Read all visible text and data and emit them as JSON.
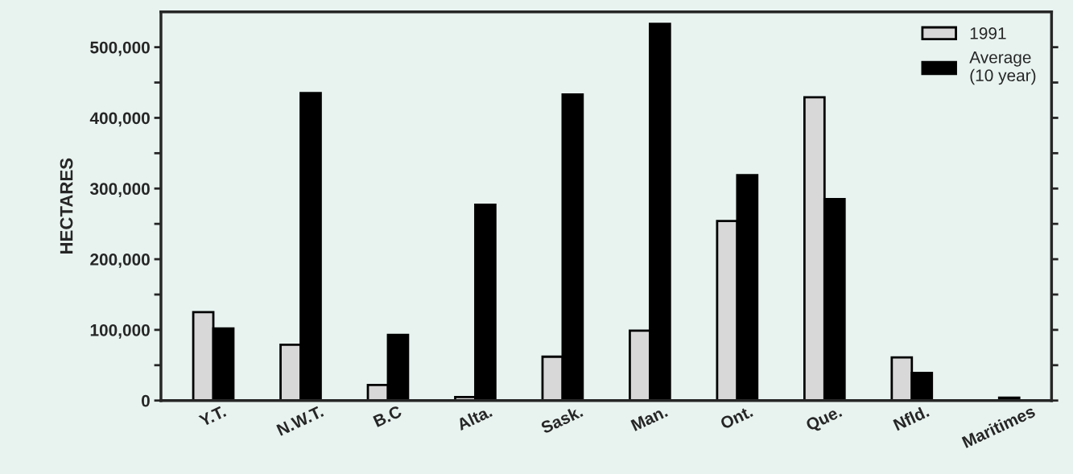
{
  "chart_data": {
    "type": "bar",
    "ylabel": "HECTARES",
    "categories": [
      "Y.T.",
      "N.W.T.",
      "B.C",
      "Alta.",
      "Sask.",
      "Man.",
      "Ont.",
      "Que.",
      "Nfld.",
      "Maritimes"
    ],
    "series": [
      {
        "name": "1991",
        "color": "#d8d8d8",
        "values": [
          125000,
          79000,
          22000,
          5000,
          62000,
          99000,
          254000,
          429000,
          61000,
          null
        ]
      },
      {
        "name": "Average\n(10 year)",
        "color": "#000000",
        "values": [
          102000,
          435000,
          93000,
          277000,
          433000,
          533000,
          319000,
          285000,
          39000,
          4000
        ]
      }
    ],
    "ylim": [
      0,
      550000
    ],
    "yticks": [
      {
        "value": 0,
        "label": "0"
      },
      {
        "value": 50000,
        "label": null
      },
      {
        "value": 100000,
        "label": "100,000"
      },
      {
        "value": 150000,
        "label": null
      },
      {
        "value": 200000,
        "label": "200,000"
      },
      {
        "value": 250000,
        "label": null
      },
      {
        "value": 300000,
        "label": "300,000"
      },
      {
        "value": 350000,
        "label": null
      },
      {
        "value": 400000,
        "label": "400,000"
      },
      {
        "value": 450000,
        "label": null
      },
      {
        "value": 500000,
        "label": "500,000"
      }
    ],
    "legend": "top right",
    "grid": false
  }
}
